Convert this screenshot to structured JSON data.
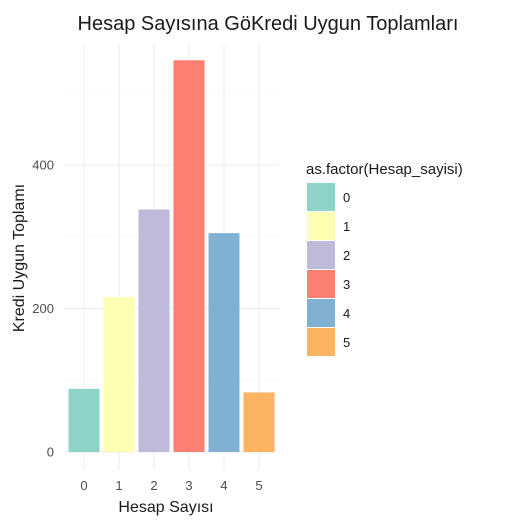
{
  "chart_data": {
    "type": "bar",
    "title": "Hesap Sayısına GöKredi Uygun Toplamları",
    "xlabel": "Hesap Sayısı",
    "ylabel": "Kredi Uygun Toplamı",
    "categories": [
      "0",
      "1",
      "2",
      "3",
      "4",
      "5"
    ],
    "values": [
      88,
      216,
      338,
      546,
      305,
      83
    ],
    "colors": [
      "#8DD3C7",
      "#FFFFB3",
      "#BEBADA",
      "#FB8072",
      "#80B1D3",
      "#FDB462"
    ],
    "ylim": [
      0,
      575
    ],
    "yticks": [
      0,
      200,
      400
    ],
    "grid": true,
    "legend": {
      "title": "as.factor(Hesap_sayisi)",
      "position": "right",
      "entries": [
        "0",
        "1",
        "2",
        "3",
        "4",
        "5"
      ]
    }
  }
}
